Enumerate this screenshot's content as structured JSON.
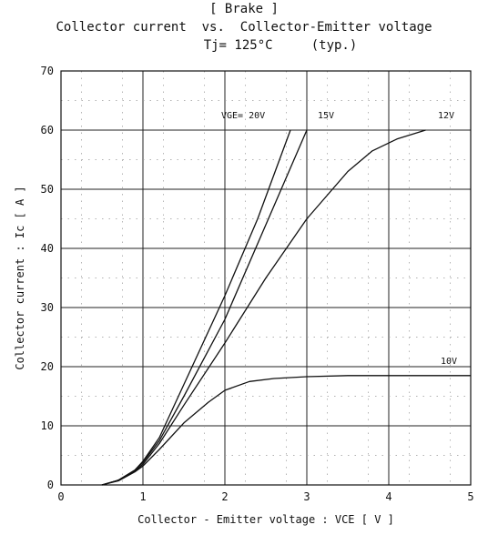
{
  "chart_data": {
    "type": "line",
    "title": "[ Brake ]",
    "subtitle": "Collector current  vs.  Collector-Emitter voltage",
    "condition": "Tj= 125°C     (typ.)",
    "xlabel": "Collector - Emitter voltage  :  VCE  [ V ]",
    "ylabel": "Collector current  :  Ic  [ A ]",
    "xlim": [
      0,
      5
    ],
    "ylim": [
      0,
      70
    ],
    "xticks": [
      "0",
      "1",
      "2",
      "3",
      "4",
      "5"
    ],
    "yticks": [
      "0",
      "10",
      "20",
      "30",
      "40",
      "50",
      "60",
      "70"
    ],
    "grid": true,
    "series": [
      {
        "name": "VGE= 20V",
        "x": [
          0.5,
          0.7,
          0.9,
          1.0,
          1.2,
          1.5,
          2.0,
          2.4,
          2.8
        ],
        "y": [
          0,
          0.8,
          2.5,
          4,
          8,
          17,
          32,
          45,
          60
        ]
      },
      {
        "name": "15V",
        "x": [
          0.5,
          0.7,
          0.9,
          1.0,
          1.2,
          1.5,
          2.0,
          2.5,
          3.0
        ],
        "y": [
          0,
          0.8,
          2.5,
          3.8,
          7.5,
          15,
          28,
          44,
          60
        ]
      },
      {
        "name": "12V",
        "x": [
          0.5,
          0.7,
          0.9,
          1.0,
          1.2,
          1.5,
          2.0,
          2.5,
          3.0,
          3.5,
          3.8,
          4.1,
          4.45
        ],
        "y": [
          0,
          0.8,
          2.3,
          3.5,
          7,
          13.5,
          24,
          35,
          45,
          53,
          56.5,
          58.5,
          60
        ]
      },
      {
        "name": "10V",
        "x": [
          0.5,
          0.7,
          0.9,
          1.0,
          1.2,
          1.5,
          1.8,
          2.0,
          2.3,
          2.6,
          3.0,
          3.5,
          4.0,
          4.5,
          5.0
        ],
        "y": [
          0,
          0.7,
          2.2,
          3.2,
          6,
          10.5,
          14,
          16,
          17.5,
          18,
          18.3,
          18.5,
          18.5,
          18.5,
          18.5
        ]
      }
    ]
  }
}
